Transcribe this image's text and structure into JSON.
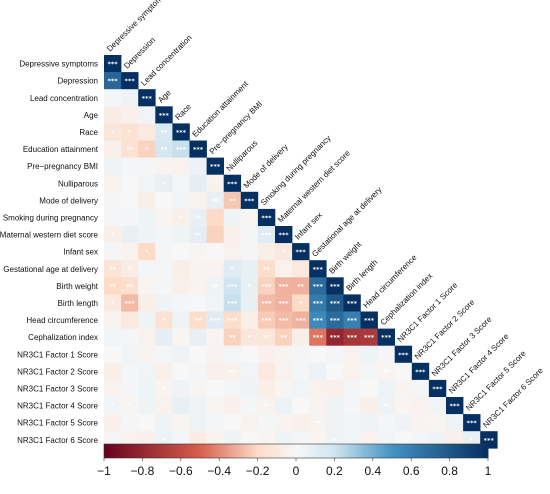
{
  "chart_data": {
    "type": "heatmap",
    "layout": "lower-triangle correlation matrix with diagonal",
    "variables": [
      "Depressive symptoms",
      "Depression",
      "Lead concentration",
      "Age",
      "Race",
      "Education attainment",
      "Pre−pregnancy BMI",
      "Nulliparous",
      "Mode of delivery",
      "Smoking during pregnancy",
      "Maternal western diet score",
      "Infant sex",
      "Gestational age at delivery",
      "Birth weight",
      "Birth length",
      "Head circumference",
      "Cephalization index",
      "NR3C1 Factor 1 Score",
      "NR3C1 Factor 2 Score",
      "NR3C1 Factor 3 Score",
      "NR3C1 Factor 4 Score",
      "NR3C1 Factor 5 Score",
      "NR3C1 Factor 6 Score"
    ],
    "matrix": [
      [
        1
      ],
      [
        0.72,
        1
      ],
      [
        0.02,
        0.04,
        1
      ],
      [
        -0.08,
        -0.05,
        0.03,
        1
      ],
      [
        -0.12,
        -0.15,
        -0.1,
        0.16,
        1
      ],
      [
        -0.05,
        -0.15,
        -0.22,
        0.18,
        0.22,
        1
      ],
      [
        0.04,
        0.02,
        0.02,
        -0.03,
        -0.04,
        0.06,
        1
      ],
      [
        -0.03,
        0.0,
        0.03,
        0.08,
        0.02,
        0.1,
        -0.04,
        1
      ],
      [
        0.02,
        0.0,
        -0.06,
        0.0,
        0.03,
        -0.04,
        0.08,
        -0.25,
        1
      ],
      [
        0.02,
        0.02,
        0.05,
        -0.02,
        -0.06,
        0.08,
        -0.2,
        0.05,
        -0.02,
        1
      ],
      [
        -0.06,
        0.08,
        0.05,
        0.02,
        0.05,
        0.1,
        -0.22,
        -0.05,
        0.02,
        0.12,
        1
      ],
      [
        0.02,
        -0.04,
        -0.2,
        0.02,
        0.0,
        -0.02,
        0.0,
        -0.04,
        0.02,
        -0.06,
        -0.1,
        1
      ],
      [
        -0.14,
        -0.08,
        0.02,
        0.02,
        -0.06,
        -0.03,
        -0.03,
        0.12,
        0.08,
        -0.18,
        -0.04,
        -0.1,
        1
      ],
      [
        -0.2,
        -0.17,
        -0.02,
        0.02,
        -0.05,
        -0.03,
        0.05,
        0.2,
        0.08,
        -0.22,
        -0.3,
        -0.3,
        0.7,
        1
      ],
      [
        -0.1,
        -0.28,
        -0.06,
        0.04,
        0.02,
        0.01,
        0.03,
        0.22,
        0.08,
        -0.28,
        -0.3,
        -0.2,
        0.62,
        0.8,
        1
      ],
      [
        -0.03,
        -0.1,
        0.05,
        -0.15,
        0.05,
        -0.18,
        0.12,
        -0.18,
        -0.06,
        -0.24,
        -0.28,
        -0.3,
        0.55,
        0.7,
        0.6,
        1
      ],
      [
        0.03,
        0.02,
        -0.04,
        0.1,
        -0.02,
        0.08,
        -0.02,
        -0.22,
        -0.12,
        -0.12,
        -0.22,
        -0.06,
        -0.45,
        -0.8,
        -0.72,
        -0.7,
        1
      ],
      [
        0.0,
        0.03,
        -0.03,
        0.02,
        0.04,
        0.0,
        -0.03,
        0.02,
        0.0,
        -0.05,
        -0.03,
        0.02,
        0.0,
        0.02,
        -0.03,
        0.05,
        0.02,
        1
      ],
      [
        -0.06,
        0.02,
        0.03,
        -0.05,
        0.0,
        0.02,
        -0.05,
        -0.04,
        0.03,
        -0.1,
        -0.04,
        0.02,
        0.06,
        0.0,
        -0.04,
        0.02,
        -0.02,
        0.0,
        1
      ],
      [
        -0.04,
        0.02,
        0.05,
        -0.02,
        0.04,
        -0.02,
        0.0,
        0.02,
        0.04,
        -0.06,
        -0.02,
        0.03,
        -0.04,
        -0.05,
        0.02,
        0.0,
        0.05,
        -0.03,
        0.02,
        1
      ],
      [
        0.03,
        -0.02,
        0.05,
        -0.04,
        0.08,
        0.04,
        -0.02,
        -0.05,
        0.02,
        -0.03,
        0.06,
        0.0,
        -0.03,
        0.05,
        0.02,
        -0.06,
        0.04,
        -0.02,
        -0.04,
        0.03,
        1
      ],
      [
        -0.05,
        0.02,
        0.0,
        0.04,
        -0.02,
        0.05,
        0.02,
        0.0,
        -0.04,
        0.02,
        -0.03,
        -0.05,
        -0.03,
        0.04,
        0.03,
        0.05,
        0.02,
        0.04,
        -0.03,
        -0.02,
        0.05,
        1
      ],
      [
        0.02,
        -0.04,
        -0.05,
        0.06,
        0.02,
        -0.08,
        -0.03,
        0.04,
        0.0,
        -0.02,
        0.05,
        0.02,
        -0.02,
        0.05,
        0.03,
        -0.04,
        0.03,
        0.0,
        0.02,
        0.04,
        -0.05,
        0.08,
        1
      ]
    ],
    "significance": [
      [
        "***"
      ],
      [
        "***",
        "***"
      ],
      [
        "",
        "",
        "***"
      ],
      [
        "",
        "",
        "",
        "***"
      ],
      [
        "*",
        "*",
        "",
        "**",
        "***"
      ],
      [
        "",
        "**",
        "*",
        "**",
        "***",
        "***"
      ],
      [
        "",
        "",
        "",
        "",
        "",
        "",
        "***"
      ],
      [
        "",
        "",
        "",
        "*",
        "",
        "",
        "",
        "***"
      ],
      [
        "",
        "",
        "",
        "",
        "",
        "",
        "**",
        "**",
        "***"
      ],
      [
        "",
        "",
        "",
        "",
        "*",
        "**",
        "",
        "",
        "",
        "***"
      ],
      [
        "*",
        "",
        "",
        "",
        "",
        "**",
        "",
        "",
        "",
        "***",
        "***"
      ],
      [
        "",
        "",
        "*",
        "",
        "",
        "",
        "",
        "",
        "",
        "",
        "*",
        "***"
      ],
      [
        "**",
        "*",
        "",
        "",
        "",
        "",
        "",
        "*",
        "",
        "**",
        "",
        "",
        "***"
      ],
      [
        "**",
        "**",
        "",
        "",
        "",
        "",
        "**",
        "***",
        "*",
        "***",
        "***",
        "**",
        "***",
        "***"
      ],
      [
        "*",
        "***",
        "",
        "",
        "",
        "",
        "",
        "***",
        "",
        "***",
        "***",
        "*",
        "***",
        "***",
        "***"
      ],
      [
        "",
        "",
        "",
        "*",
        "",
        "**",
        "***",
        "***",
        "",
        "***",
        "***",
        "***",
        "***",
        "***",
        "***",
        "***"
      ],
      [
        "",
        "",
        "",
        "",
        "",
        "",
        "",
        "**",
        "*",
        "**",
        "**",
        "",
        "***",
        "***",
        "***",
        "***",
        "***"
      ],
      [
        "",
        "",
        "",
        "",
        "",
        "",
        "",
        "",
        "",
        "",
        "",
        "",
        "",
        "",
        "",
        "",
        "",
        "***"
      ],
      [
        "",
        "",
        "",
        "",
        "",
        "",
        "",
        "**",
        "",
        "",
        "",
        "",
        "",
        "",
        "",
        "",
        "**",
        "",
        "***"
      ],
      [
        "",
        "",
        "",
        "*",
        "",
        "",
        "",
        "",
        "",
        "",
        "",
        "",
        "",
        "",
        "",
        "",
        "",
        "",
        "",
        "***"
      ],
      [
        "*",
        "*",
        "",
        "",
        "",
        "",
        "",
        "",
        "",
        "*",
        "",
        "",
        "",
        "",
        "",
        "",
        "**",
        "",
        "",
        "",
        "***"
      ],
      [
        "",
        "",
        "",
        "",
        "",
        "",
        "",
        "",
        "",
        "",
        "",
        "",
        "**",
        "",
        "",
        "",
        "",
        "",
        "",
        "",
        "",
        "***"
      ],
      [
        "",
        "",
        "",
        "*",
        "",
        "",
        "",
        "",
        "",
        "",
        "",
        "",
        "",
        "*",
        "",
        "",
        "",
        "",
        "",
        "",
        "",
        "*",
        "***"
      ]
    ],
    "colorbar": {
      "min": -1,
      "max": 1,
      "ticks": [
        "−1",
        "−0.8",
        "−0.6",
        "−0.4",
        "−0.2",
        "0",
        "0.2",
        "0.4",
        "0.6",
        "0.8",
        "1"
      ],
      "colors": {
        "neg_end": "#67001f",
        "neg_mid": "#d6604d",
        "neg_light": "#fddbc7",
        "neutral": "#f7f7f7",
        "pos_light": "#d1e5f0",
        "pos_mid": "#4393c3",
        "pos_end": "#053061"
      }
    },
    "title": "",
    "xlabel": "",
    "ylabel": ""
  }
}
